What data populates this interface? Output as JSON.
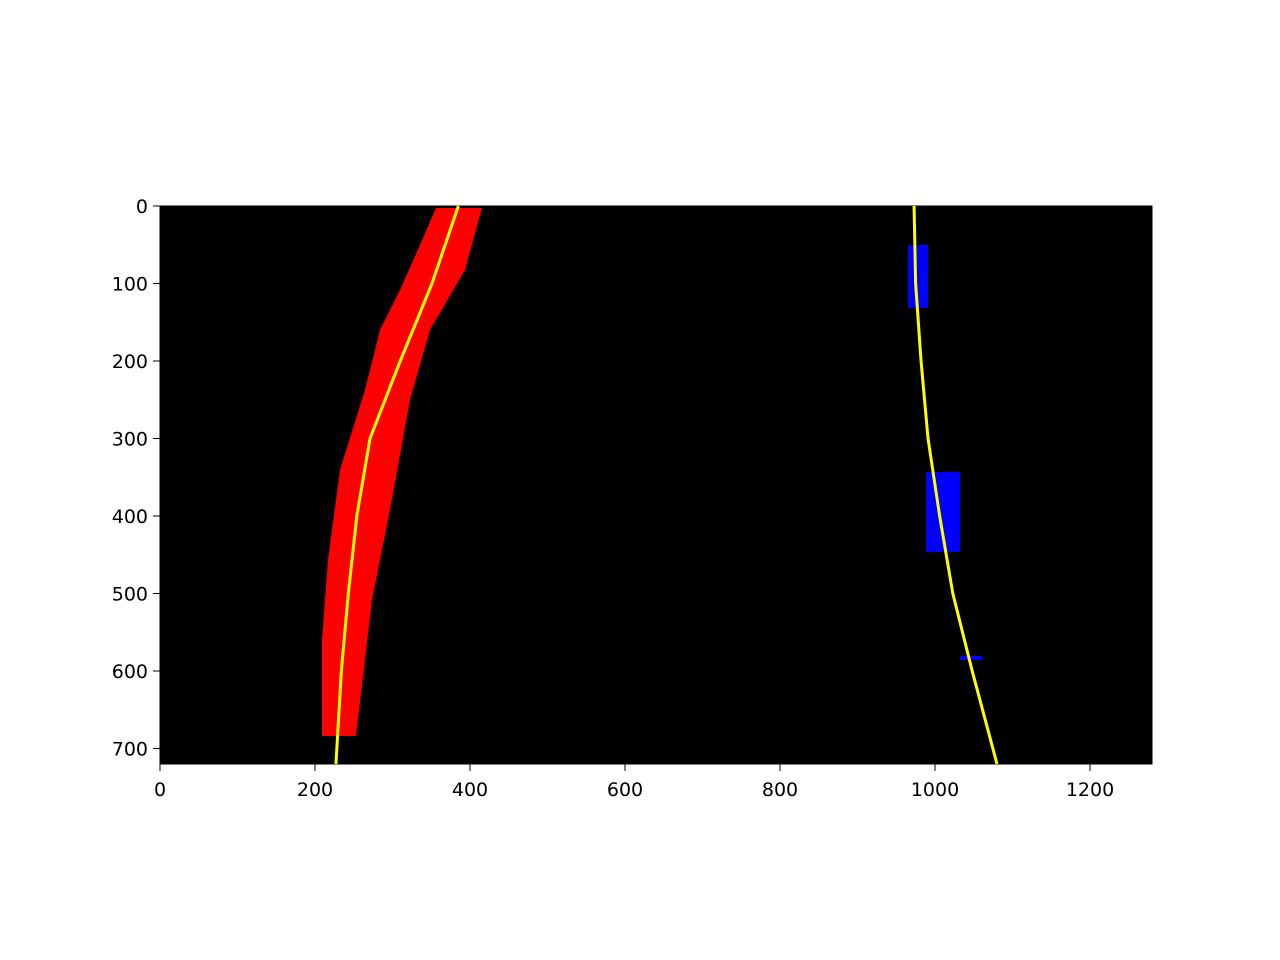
{
  "chart_data": {
    "type": "line",
    "xlim": [
      0,
      1280
    ],
    "ylim": [
      720,
      0
    ],
    "xticks": [
      0,
      200,
      400,
      600,
      800,
      1000,
      1200
    ],
    "yticks": [
      0,
      100,
      200,
      300,
      400,
      500,
      600,
      700
    ],
    "background": "#000000",
    "series": [
      {
        "color": "#ffff00",
        "x": [
          385,
          351,
          310,
          271,
          254,
          243,
          234,
          227
        ],
        "y": [
          0,
          100,
          200,
          300,
          400,
          500,
          600,
          720
        ]
      },
      {
        "color": "#ffff00",
        "x": [
          973,
          975,
          982,
          991,
          1006,
          1023,
          1048,
          1080
        ],
        "y": [
          0,
          100,
          200,
          300,
          400,
          500,
          600,
          720
        ]
      }
    ]
  }
}
